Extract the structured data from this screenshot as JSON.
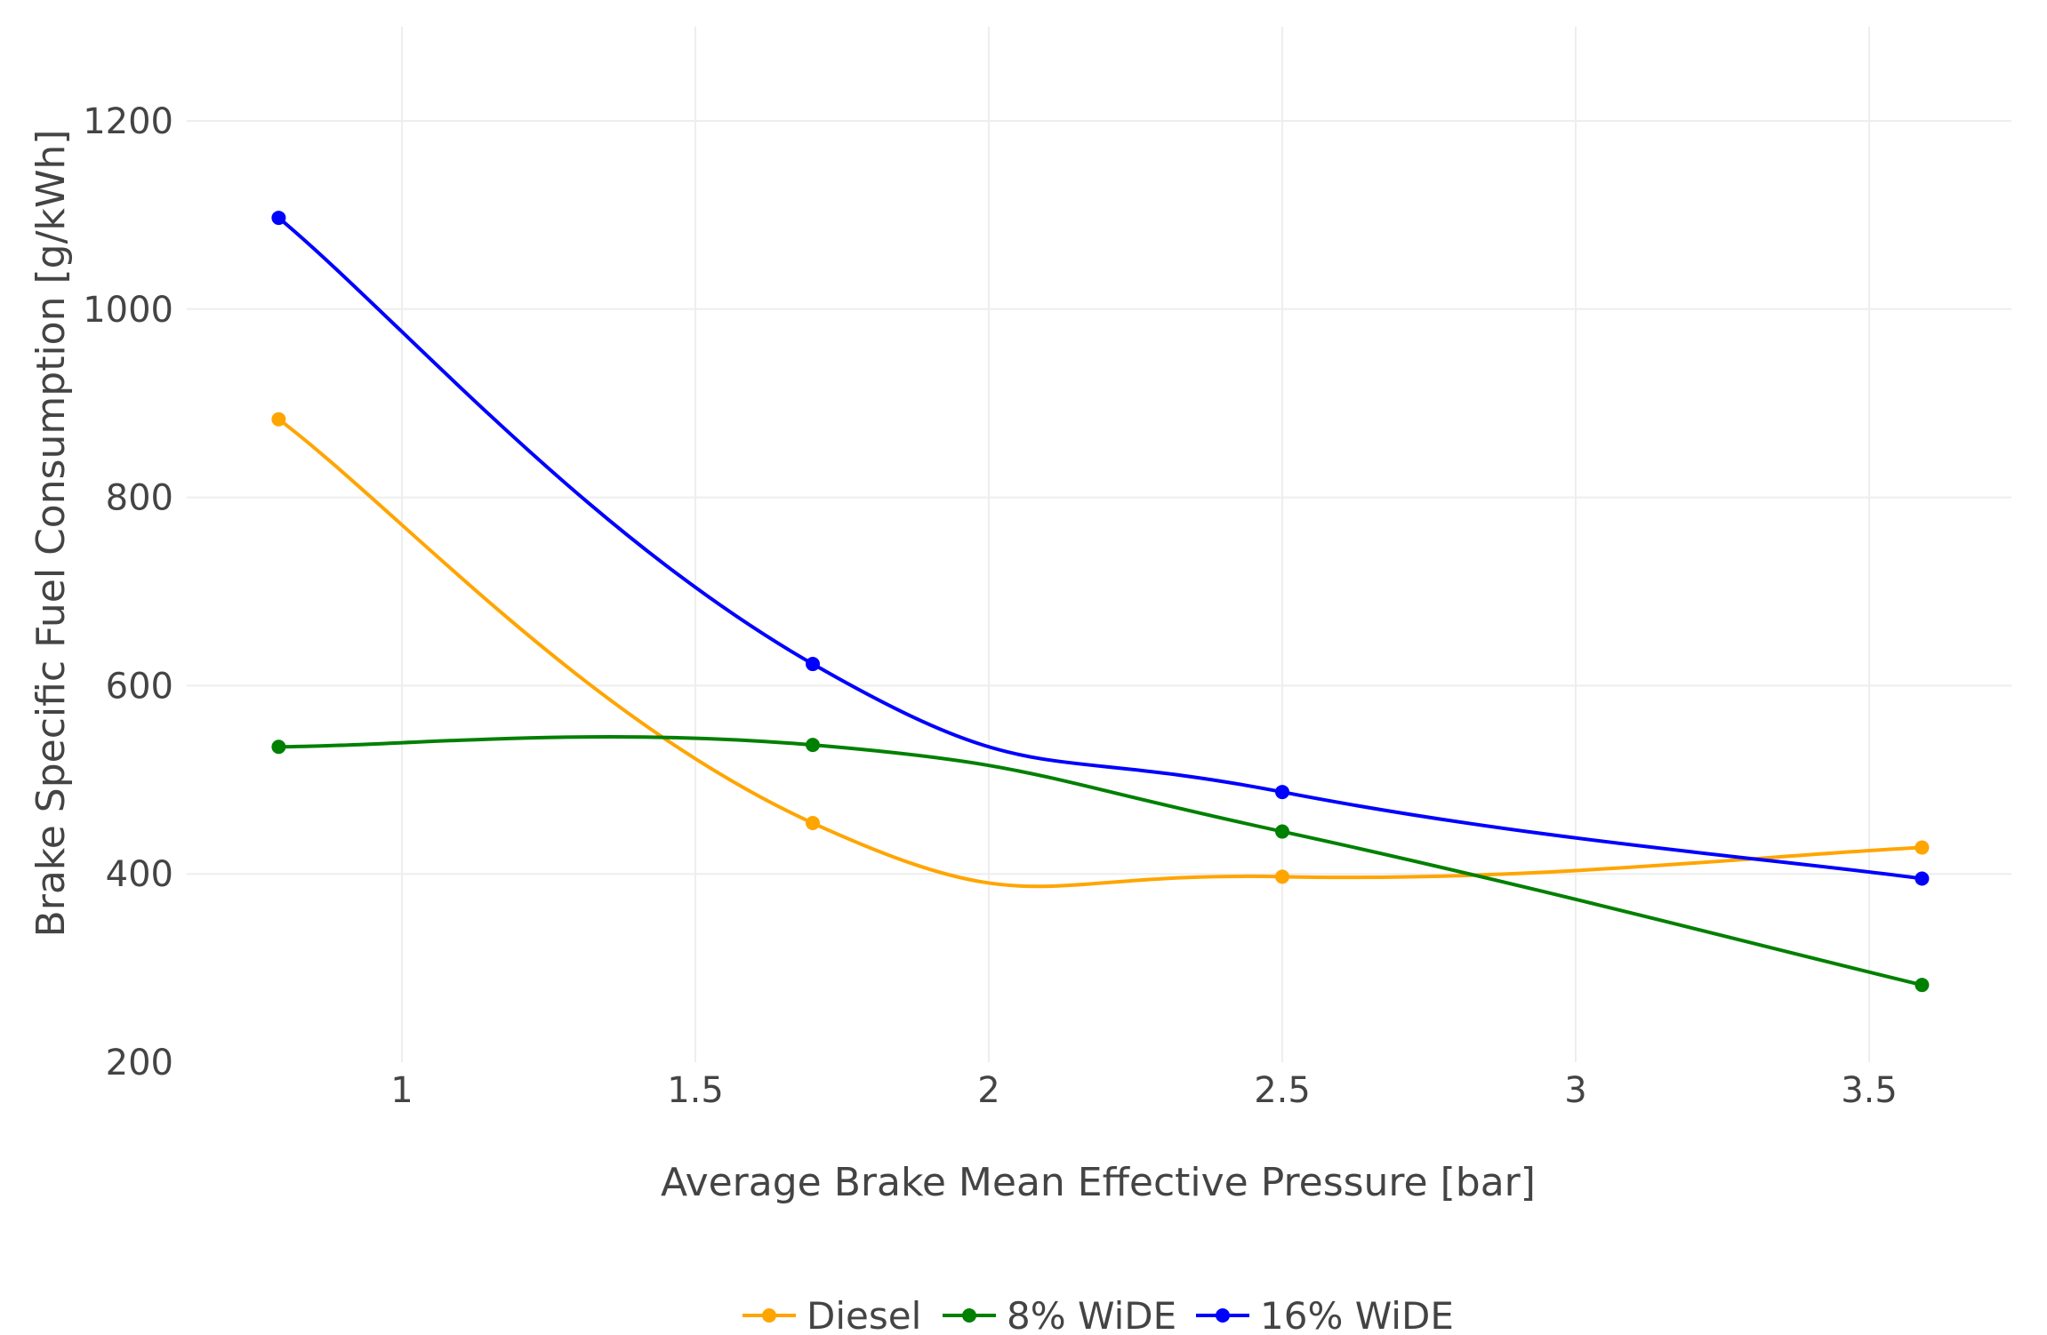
{
  "chart_data": {
    "type": "line",
    "title": "",
    "xlabel": "Average Brake Mean Effective Pressure [bar]",
    "ylabel": "Brake Specific Fuel Consumption [g/kWh]",
    "xlim": [
      0.55,
      3.75
    ],
    "ylim": [
      200,
      1300
    ],
    "xticks": [
      1,
      1.5,
      2,
      2.5,
      3,
      3.5
    ],
    "xtick_labels": [
      "1",
      "1.5",
      "2",
      "2.5",
      "3",
      "3.5"
    ],
    "yticks": [
      200,
      400,
      600,
      800,
      1000,
      1200
    ],
    "ytick_labels": [
      "200",
      "400",
      "600",
      "800",
      "1000",
      "1200"
    ],
    "grid": true,
    "legend_position": "bottom-center",
    "x": [
      0.79,
      1.7,
      2.5,
      3.59
    ],
    "series": [
      {
        "name": "Diesel",
        "color": "#FFA500",
        "values": [
          883,
          454,
          397,
          428
        ]
      },
      {
        "name": "8% WiDE",
        "color": "#008000",
        "values": [
          535,
          537,
          445,
          282
        ]
      },
      {
        "name": "16% WiDE",
        "color": "#0000FF",
        "values": [
          1097,
          623,
          487,
          395
        ]
      }
    ]
  }
}
